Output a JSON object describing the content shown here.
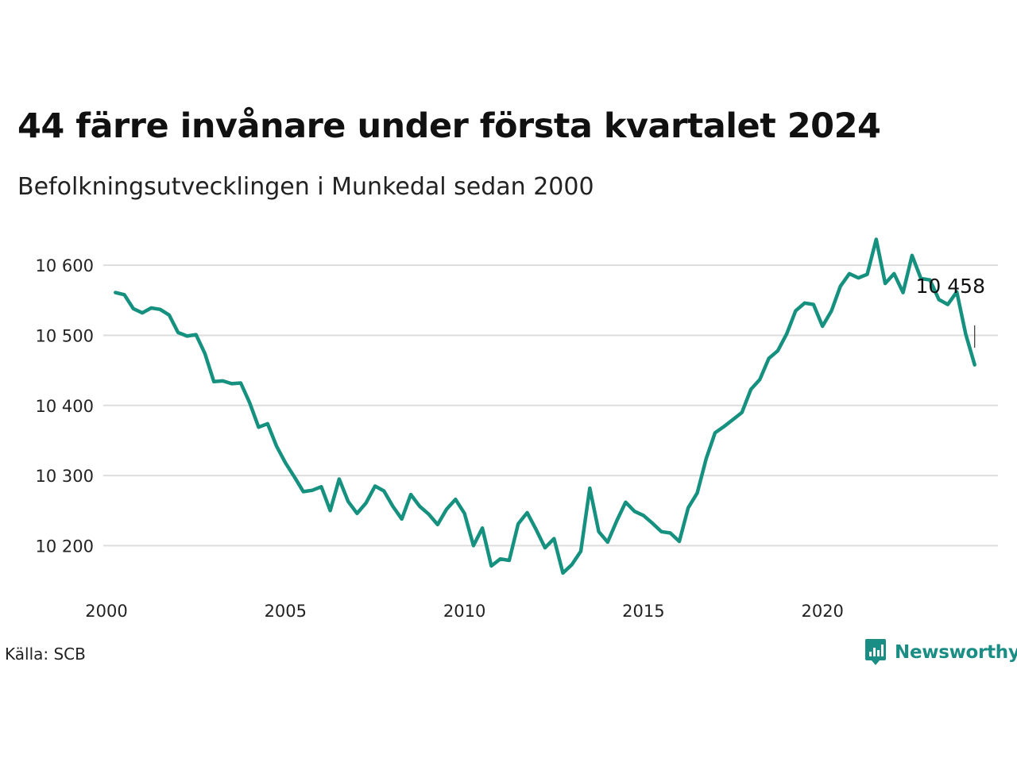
{
  "title": "44 färre invånare under första kvartalet 2024",
  "subtitle": "Befolkningsutvecklingen i Munkedal sedan 2000",
  "source": "Källa: SCB",
  "brand": "Newsworthy",
  "colors": {
    "line": "#16917f",
    "grid": "#dddddd",
    "brand": "#1a8d84"
  },
  "chart_data": {
    "type": "line",
    "title": "44 färre invånare under första kvartalet 2024",
    "subtitle": "Befolkningsutvecklingen i Munkedal sedan 2000",
    "xlabel": "",
    "ylabel": "",
    "grid": true,
    "xlim": [
      2000,
      2024.9
    ],
    "ylim": [
      10145,
      10650
    ],
    "x_ticks": [
      {
        "value": 2000,
        "label": "2000"
      },
      {
        "value": 2005,
        "label": "2005"
      },
      {
        "value": 2010,
        "label": "2010"
      },
      {
        "value": 2015,
        "label": "2015"
      },
      {
        "value": 2020,
        "label": "2020"
      }
    ],
    "y_ticks": [
      {
        "value": 10200,
        "label": "10 200"
      },
      {
        "value": 10300,
        "label": "10 300"
      },
      {
        "value": 10400,
        "label": "10 400"
      },
      {
        "value": 10500,
        "label": "10 500"
      },
      {
        "value": 10600,
        "label": "10 600"
      }
    ],
    "end_label": "10 458",
    "series": [
      {
        "x_start": 2000.25,
        "x_step": 0.25,
        "values": [
          10561,
          10558,
          10538,
          10532,
          10539,
          10537,
          10529,
          10504,
          10499,
          10501,
          10474,
          10434,
          10435,
          10431,
          10432,
          10404,
          10369,
          10374,
          10342,
          10318,
          10298,
          10277,
          10279,
          10284,
          10250,
          10295,
          10263,
          10246,
          10261,
          10285,
          10278,
          10256,
          10238,
          10273,
          10256,
          10245,
          10230,
          10252,
          10266,
          10246,
          10200,
          10225,
          10171,
          10181,
          10179,
          10231,
          10247,
          10223,
          10197,
          10210,
          10161,
          10173,
          10192,
          10282,
          10220,
          10205,
          10235,
          10262,
          10249,
          10243,
          10232,
          10220,
          10218,
          10206,
          10254,
          10275,
          10324,
          10361,
          10370,
          10380,
          10390,
          10423,
          10437,
          10467,
          10478,
          10502,
          10535,
          10546,
          10544,
          10513,
          10535,
          10570,
          10588,
          10582,
          10587,
          10637,
          10574,
          10588,
          10561,
          10614,
          10581,
          10579,
          10551,
          10544,
          10562,
          10502,
          10458
        ]
      }
    ]
  }
}
